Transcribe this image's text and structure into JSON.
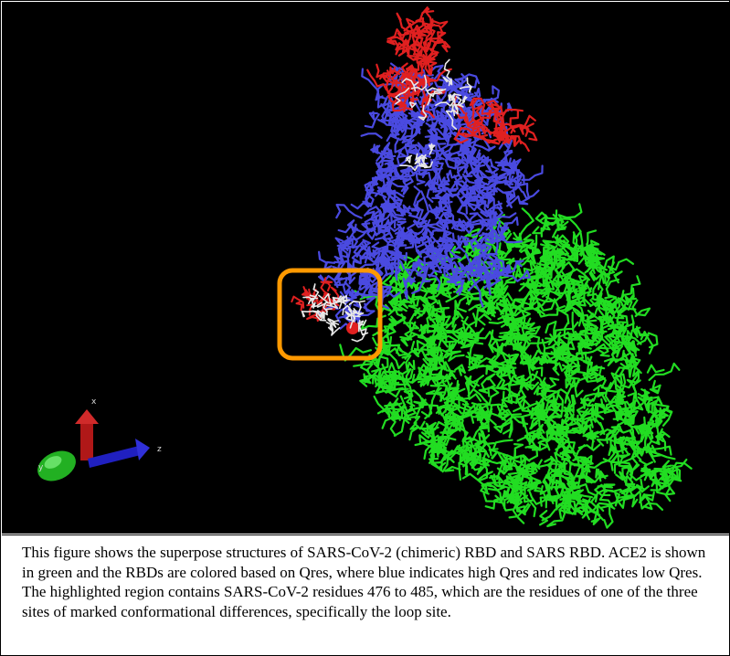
{
  "figure": {
    "structure_colors": {
      "ace2": "#22dd22",
      "rbd_high_qres": "#4a4ae0",
      "rbd_low_qres": "#e02020",
      "intermediate": "#e8e8e8",
      "background": "#000000",
      "highlight_box": "#ff9900"
    },
    "axes": {
      "x_label": "x",
      "y_label": "y",
      "z_label": "z"
    }
  },
  "caption": {
    "text": "This figure shows the superpose structures of SARS-CoV-2 (chimeric) RBD and SARS RBD. ACE2 is shown in green and the RBDs are colored based on Qres, where blue indicates high Qres and red indicates low Qres. The highlighted region contains SARS-CoV-2 residues 476 to 485, which are the residues of one of the three sites of marked conformational differences, specifically the loop site."
  }
}
